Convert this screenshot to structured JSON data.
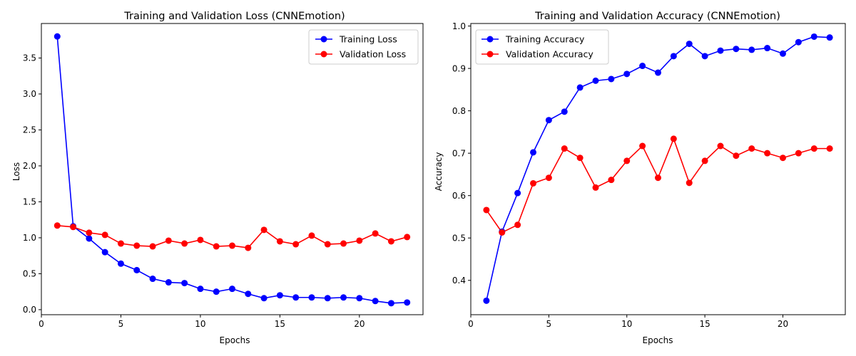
{
  "figure": {
    "panels": [
      {
        "title": "Training and Validation Loss (CNNEmotion)"
      },
      {
        "title": "Training and Validation Accuracy (CNNEmotion)"
      }
    ]
  },
  "chart_data": [
    {
      "type": "line",
      "title": "Training and Validation Loss (CNNEmotion)",
      "xlabel": "Epochs",
      "ylabel": "Loss",
      "xlim": [
        0,
        24
      ],
      "ylim": [
        -0.07,
        3.98
      ],
      "xticks": [
        0,
        5,
        10,
        15,
        20
      ],
      "yticks": [
        0.0,
        0.5,
        1.0,
        1.5,
        2.0,
        2.5,
        3.0,
        3.5
      ],
      "ytick_decimals": 1,
      "grid": false,
      "legend": "upper right",
      "x": [
        1,
        2,
        3,
        4,
        5,
        6,
        7,
        8,
        9,
        10,
        11,
        12,
        13,
        14,
        15,
        16,
        17,
        18,
        19,
        20,
        21,
        22,
        23
      ],
      "series": [
        {
          "name": "Training Loss",
          "color": "#0000ff",
          "values": [
            3.8,
            1.16,
            0.99,
            0.8,
            0.64,
            0.55,
            0.43,
            0.38,
            0.37,
            0.29,
            0.25,
            0.29,
            0.22,
            0.16,
            0.2,
            0.17,
            0.17,
            0.16,
            0.17,
            0.16,
            0.12,
            0.09,
            0.1
          ]
        },
        {
          "name": "Validation Loss",
          "color": "#ff0000",
          "values": [
            1.17,
            1.15,
            1.07,
            1.04,
            0.92,
            0.89,
            0.88,
            0.96,
            0.92,
            0.97,
            0.88,
            0.89,
            0.86,
            1.11,
            0.95,
            0.91,
            1.03,
            0.91,
            0.92,
            0.96,
            1.06,
            0.95,
            1.01
          ]
        }
      ]
    },
    {
      "type": "line",
      "title": "Training and Validation Accuracy (CNNEmotion)",
      "xlabel": "Epochs",
      "ylabel": "Accuracy",
      "xlim": [
        0,
        24
      ],
      "ylim": [
        0.319,
        1.006
      ],
      "xticks": [
        0,
        5,
        10,
        15,
        20
      ],
      "yticks": [
        0.4,
        0.5,
        0.6,
        0.7,
        0.8,
        0.9,
        1.0
      ],
      "ytick_decimals": 1,
      "grid": false,
      "legend": "upper left",
      "x": [
        1,
        2,
        3,
        4,
        5,
        6,
        7,
        8,
        9,
        10,
        11,
        12,
        13,
        14,
        15,
        16,
        17,
        18,
        19,
        20,
        21,
        22,
        23
      ],
      "series": [
        {
          "name": "Training Accuracy",
          "color": "#0000ff",
          "values": [
            0.352,
            0.515,
            0.606,
            0.702,
            0.778,
            0.798,
            0.855,
            0.871,
            0.875,
            0.887,
            0.906,
            0.89,
            0.929,
            0.958,
            0.929,
            0.942,
            0.946,
            0.944,
            0.948,
            0.935,
            0.962,
            0.975,
            0.973
          ]
        },
        {
          "name": "Validation Accuracy",
          "color": "#ff0000",
          "values": [
            0.566,
            0.513,
            0.531,
            0.629,
            0.642,
            0.711,
            0.689,
            0.619,
            0.637,
            0.682,
            0.717,
            0.642,
            0.734,
            0.63,
            0.682,
            0.717,
            0.694,
            0.711,
            0.7,
            0.689,
            0.7,
            0.711,
            0.711
          ]
        }
      ]
    }
  ]
}
